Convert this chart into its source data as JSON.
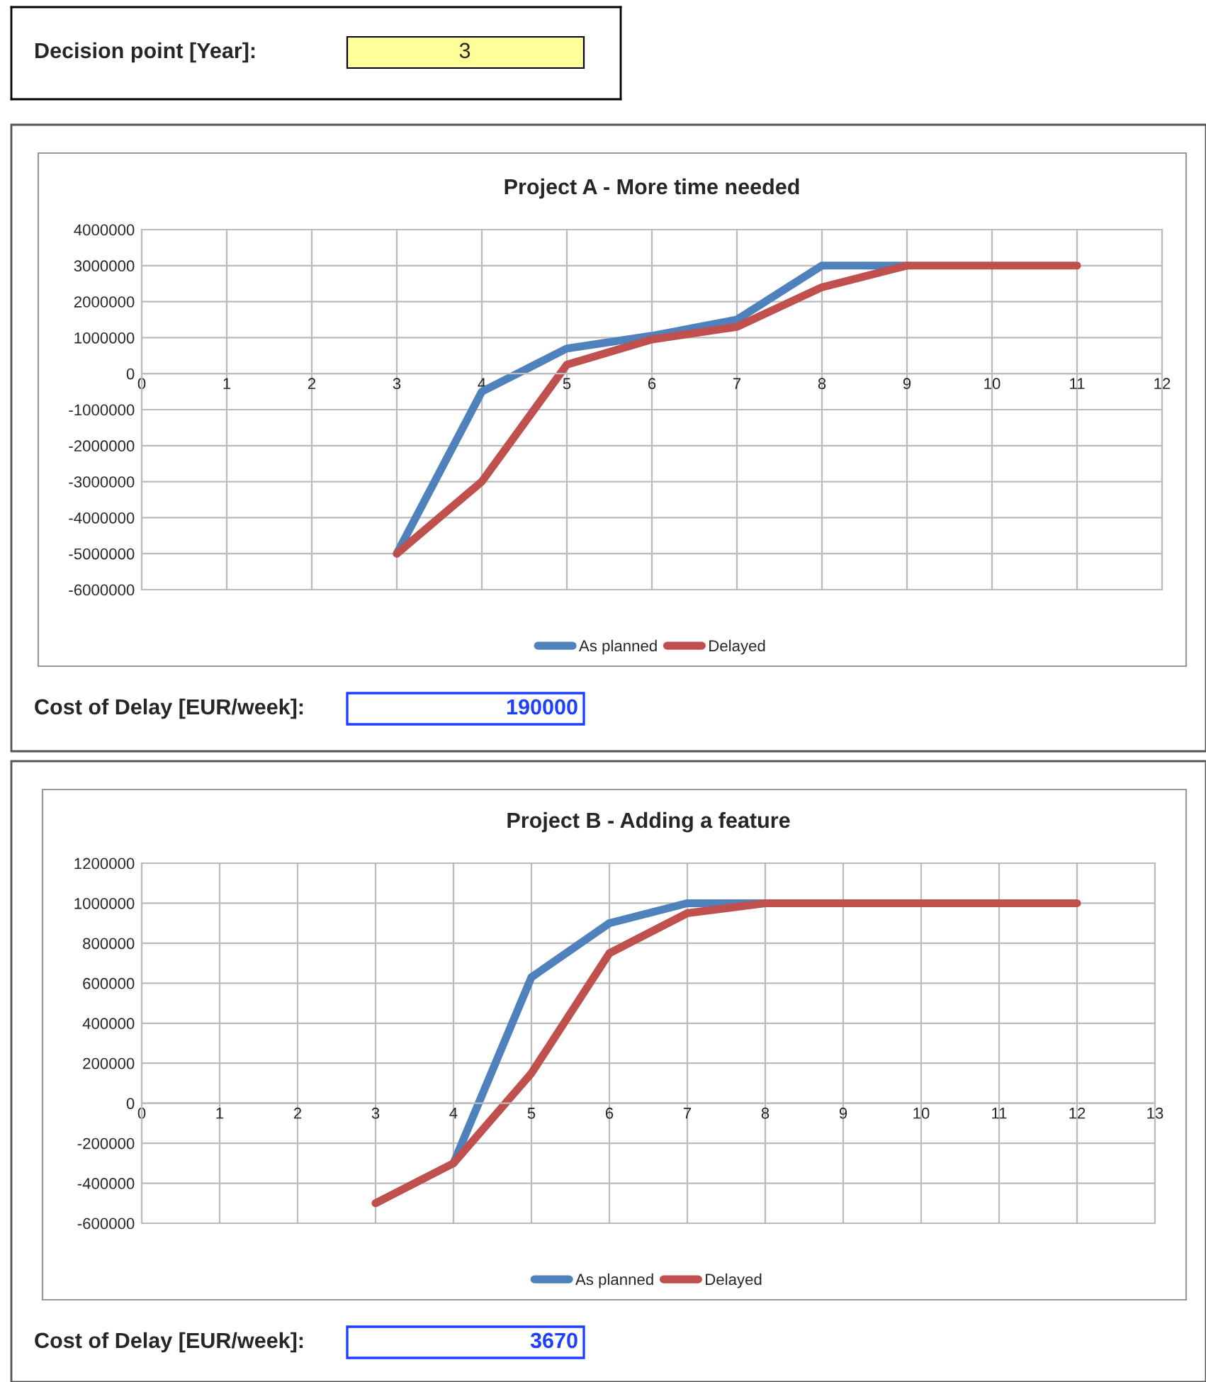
{
  "chart_data": [
    {
      "type": "other",
      "annotations": [
        "Decision point [Year]:",
        "3"
      ]
    },
    {
      "type": "line",
      "title": "Project A - More time needed",
      "xlim": [
        0,
        12
      ],
      "xticks": [
        0,
        1,
        2,
        3,
        4,
        5,
        6,
        7,
        8,
        9,
        10,
        11,
        12
      ],
      "ylim": [
        -6000000,
        4000000
      ],
      "yticks": [
        -6000000,
        -5000000,
        -4000000,
        -3000000,
        -2000000,
        -1000000,
        0,
        1000000,
        2000000,
        3000000,
        4000000
      ],
      "grid": true,
      "legend": "bottom",
      "marker": "none",
      "line_style": "solid",
      "annotations": [
        "Cost of Delay [EUR/week]:",
        "190000"
      ],
      "series": [
        {
          "name": "As planned",
          "color": "#4f81bd",
          "x": [
            3,
            4,
            5,
            6,
            7,
            8,
            9
          ],
          "values": [
            -5000000,
            -500000,
            700000,
            1050000,
            1500000,
            3000000,
            3000000
          ]
        },
        {
          "name": "Delayed",
          "color": "#c0504d",
          "x": [
            3,
            4,
            5,
            6,
            7,
            8,
            9,
            10,
            11
          ],
          "values": [
            -5000000,
            -3000000,
            250000,
            950000,
            1300000,
            2400000,
            3000000,
            3000000,
            3000000
          ]
        }
      ]
    },
    {
      "type": "line",
      "title": "Project B - Adding a feature",
      "xlim": [
        0,
        13
      ],
      "xticks": [
        0,
        1,
        2,
        3,
        4,
        5,
        6,
        7,
        8,
        9,
        10,
        11,
        12,
        13
      ],
      "ylim": [
        -600000,
        1200000
      ],
      "yticks": [
        -600000,
        -400000,
        -200000,
        0,
        200000,
        400000,
        600000,
        800000,
        1000000,
        1200000
      ],
      "grid": true,
      "legend": "bottom",
      "marker": "none",
      "line_style": "solid",
      "annotations": [
        "Cost of Delay [EUR/week]:",
        "3670"
      ],
      "series": [
        {
          "name": "As planned",
          "color": "#4f81bd",
          "x": [
            4,
            5,
            6,
            7,
            8
          ],
          "values": [
            -300000,
            630000,
            900000,
            1000000,
            1000000
          ]
        },
        {
          "name": "Delayed",
          "color": "#c0504d",
          "x": [
            3,
            4,
            5,
            6,
            7,
            8,
            9,
            10,
            11,
            12
          ],
          "values": [
            -500000,
            -300000,
            150000,
            750000,
            950000,
            1000000,
            1000000,
            1000000,
            1000000,
            1000000
          ]
        }
      ]
    }
  ]
}
